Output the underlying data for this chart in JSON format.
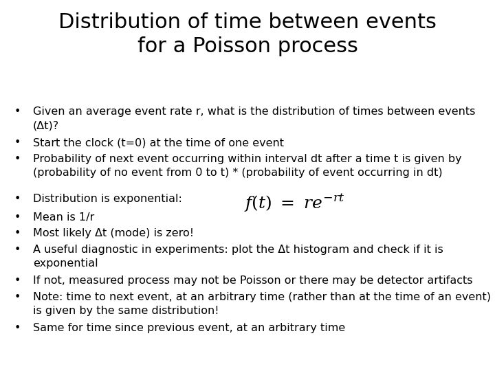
{
  "title_line1": "Distribution of time between events",
  "title_line2": "for a Poisson process",
  "title_fontsize": 22,
  "bullet_fontsize": 11.5,
  "formula_fontsize": 18,
  "background_color": "#ffffff",
  "text_color": "#000000",
  "bullets_group1": [
    "Given an average event rate r, what is the distribution of times between events\n(Δt)?",
    "Start the clock (t=0) at the time of one event",
    "Probability of next event occurring within interval dt after a time t is given by\n(probability of no event from 0 to t) * (probability of event occurring in dt)"
  ],
  "bullets_group2": [
    "Distribution is exponential:",
    "Mean is 1/r",
    "Most likely Δt (mode) is zero!",
    "A useful diagnostic in experiments: plot the Δt histogram and check if it is\nexponential",
    "If not, measured process may not be Poisson or there may be detector artifacts",
    "Note: time to next event, at an arbitrary time (rather than at the time of an event)\nis given by the same distribution!",
    "Same for time since previous event, at an arbitrary time"
  ]
}
